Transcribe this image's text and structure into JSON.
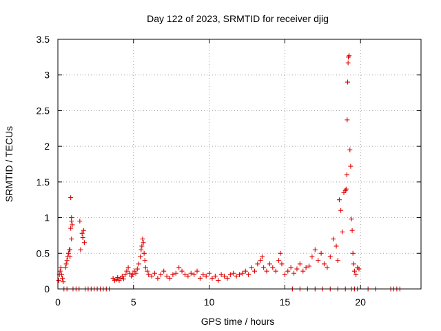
{
  "chart_data": {
    "type": "scatter",
    "title": "Day 122 of 2023, SRMTID for receiver djig",
    "xlabel": "GPS time / hours",
    "ylabel": "SRMTID / TECUs",
    "xlim": [
      0,
      24
    ],
    "ylim": [
      0,
      3.5
    ],
    "x_ticks": [
      0,
      5,
      10,
      15,
      20
    ],
    "x_tick_labels": [
      "0",
      "5",
      "10",
      "15",
      "20"
    ],
    "y_ticks": [
      0,
      0.5,
      1,
      1.5,
      2,
      2.5,
      3,
      3.5
    ],
    "y_tick_labels": [
      "0",
      "0.5",
      "1",
      "1.5",
      "2",
      "2.5",
      "3",
      "3.5"
    ],
    "grid": true,
    "marker": "plus",
    "color": "#e00000",
    "series": [
      {
        "name": "SRMTID",
        "x": [
          0.05,
          0.1,
          0.15,
          0.2,
          0.25,
          0.3,
          0.35,
          0.5,
          0.55,
          0.6,
          0.65,
          0.7,
          0.75,
          0.8,
          0.85,
          0.9,
          0.85,
          0.9,
          0.95,
          0.8,
          0.9,
          1.45,
          1.6,
          1.65,
          1.7,
          1.75,
          1.5,
          3.65,
          3.75,
          3.85,
          3.95,
          4.05,
          4.15,
          4.25,
          4.35,
          4.45,
          4.55,
          4.65,
          4.75,
          4.85,
          4.95,
          5.05,
          5.15,
          5.25,
          5.35,
          5.45,
          5.5,
          5.55,
          5.6,
          5.65,
          5.7,
          5.75,
          5.8,
          5.9,
          6.0,
          6.2,
          6.4,
          6.6,
          6.8,
          7.0,
          7.2,
          7.4,
          7.6,
          7.8,
          8.0,
          8.2,
          8.4,
          8.6,
          8.8,
          9.0,
          9.2,
          9.4,
          9.6,
          9.8,
          10.0,
          10.2,
          10.4,
          10.6,
          10.8,
          11.0,
          11.2,
          11.4,
          11.6,
          11.8,
          12.0,
          12.2,
          12.4,
          12.6,
          12.8,
          13.0,
          13.2,
          13.4,
          13.5,
          13.6,
          13.8,
          14.0,
          14.2,
          14.4,
          14.6,
          14.7,
          14.8,
          15.0,
          15.2,
          15.4,
          15.6,
          15.8,
          16.0,
          16.2,
          16.4,
          16.6,
          16.8,
          17.0,
          17.2,
          17.4,
          17.6,
          17.8,
          18.0,
          18.2,
          18.4,
          18.5,
          18.6,
          18.7,
          18.8,
          18.9,
          19.0,
          19.05,
          19.1,
          19.12,
          19.15,
          19.18,
          19.2,
          19.25,
          19.3,
          19.35,
          19.4,
          19.45,
          19.5,
          19.55,
          19.6,
          19.7,
          19.8,
          19.9,
          0.4,
          0.6,
          1.0,
          1.2,
          1.4,
          1.8,
          2.0,
          2.2,
          2.4,
          2.6,
          2.8,
          3.0,
          3.2,
          3.4,
          15.5,
          16.0,
          16.5,
          17.0,
          17.5,
          18.0,
          18.5,
          19.0,
          19.4,
          19.6,
          19.8,
          20.5,
          21.0,
          22.0,
          22.2,
          22.4,
          22.6
        ],
        "y": [
          0.12,
          0.2,
          0.25,
          0.3,
          0.2,
          0.15,
          0.1,
          0.3,
          0.35,
          0.4,
          0.45,
          0.5,
          0.55,
          0.45,
          0.85,
          1.0,
          1.28,
          0.95,
          0.9,
          0.55,
          0.7,
          0.95,
          0.78,
          0.72,
          0.82,
          0.65,
          0.55,
          0.15,
          0.12,
          0.13,
          0.16,
          0.12,
          0.15,
          0.18,
          0.14,
          0.2,
          0.25,
          0.3,
          0.22,
          0.18,
          0.2,
          0.25,
          0.22,
          0.28,
          0.35,
          0.45,
          0.55,
          0.6,
          0.7,
          0.65,
          0.5,
          0.4,
          0.3,
          0.25,
          0.2,
          0.18,
          0.22,
          0.15,
          0.2,
          0.25,
          0.18,
          0.15,
          0.2,
          0.22,
          0.3,
          0.25,
          0.2,
          0.18,
          0.22,
          0.2,
          0.25,
          0.15,
          0.2,
          0.18,
          0.22,
          0.15,
          0.18,
          0.12,
          0.2,
          0.18,
          0.15,
          0.2,
          0.22,
          0.18,
          0.2,
          0.22,
          0.25,
          0.2,
          0.3,
          0.25,
          0.35,
          0.4,
          0.45,
          0.3,
          0.25,
          0.35,
          0.3,
          0.25,
          0.4,
          0.5,
          0.35,
          0.2,
          0.25,
          0.3,
          0.22,
          0.28,
          0.35,
          0.25,
          0.3,
          0.32,
          0.45,
          0.55,
          0.4,
          0.5,
          0.35,
          0.3,
          0.45,
          0.7,
          0.6,
          0.4,
          1.25,
          1.1,
          0.8,
          1.35,
          1.38,
          1.4,
          1.6,
          2.37,
          2.9,
          3.17,
          3.25,
          3.27,
          1.95,
          1.72,
          0.98,
          0.82,
          0.5,
          0.35,
          0.25,
          0.2,
          0.3,
          0.28,
          0,
          0,
          0,
          0,
          0,
          0,
          0,
          0,
          0,
          0,
          0,
          0,
          0,
          0,
          0,
          0,
          0,
          0,
          0,
          0,
          0,
          0,
          0,
          0,
          0,
          0,
          0,
          0,
          0,
          0,
          0
        ]
      }
    ]
  }
}
